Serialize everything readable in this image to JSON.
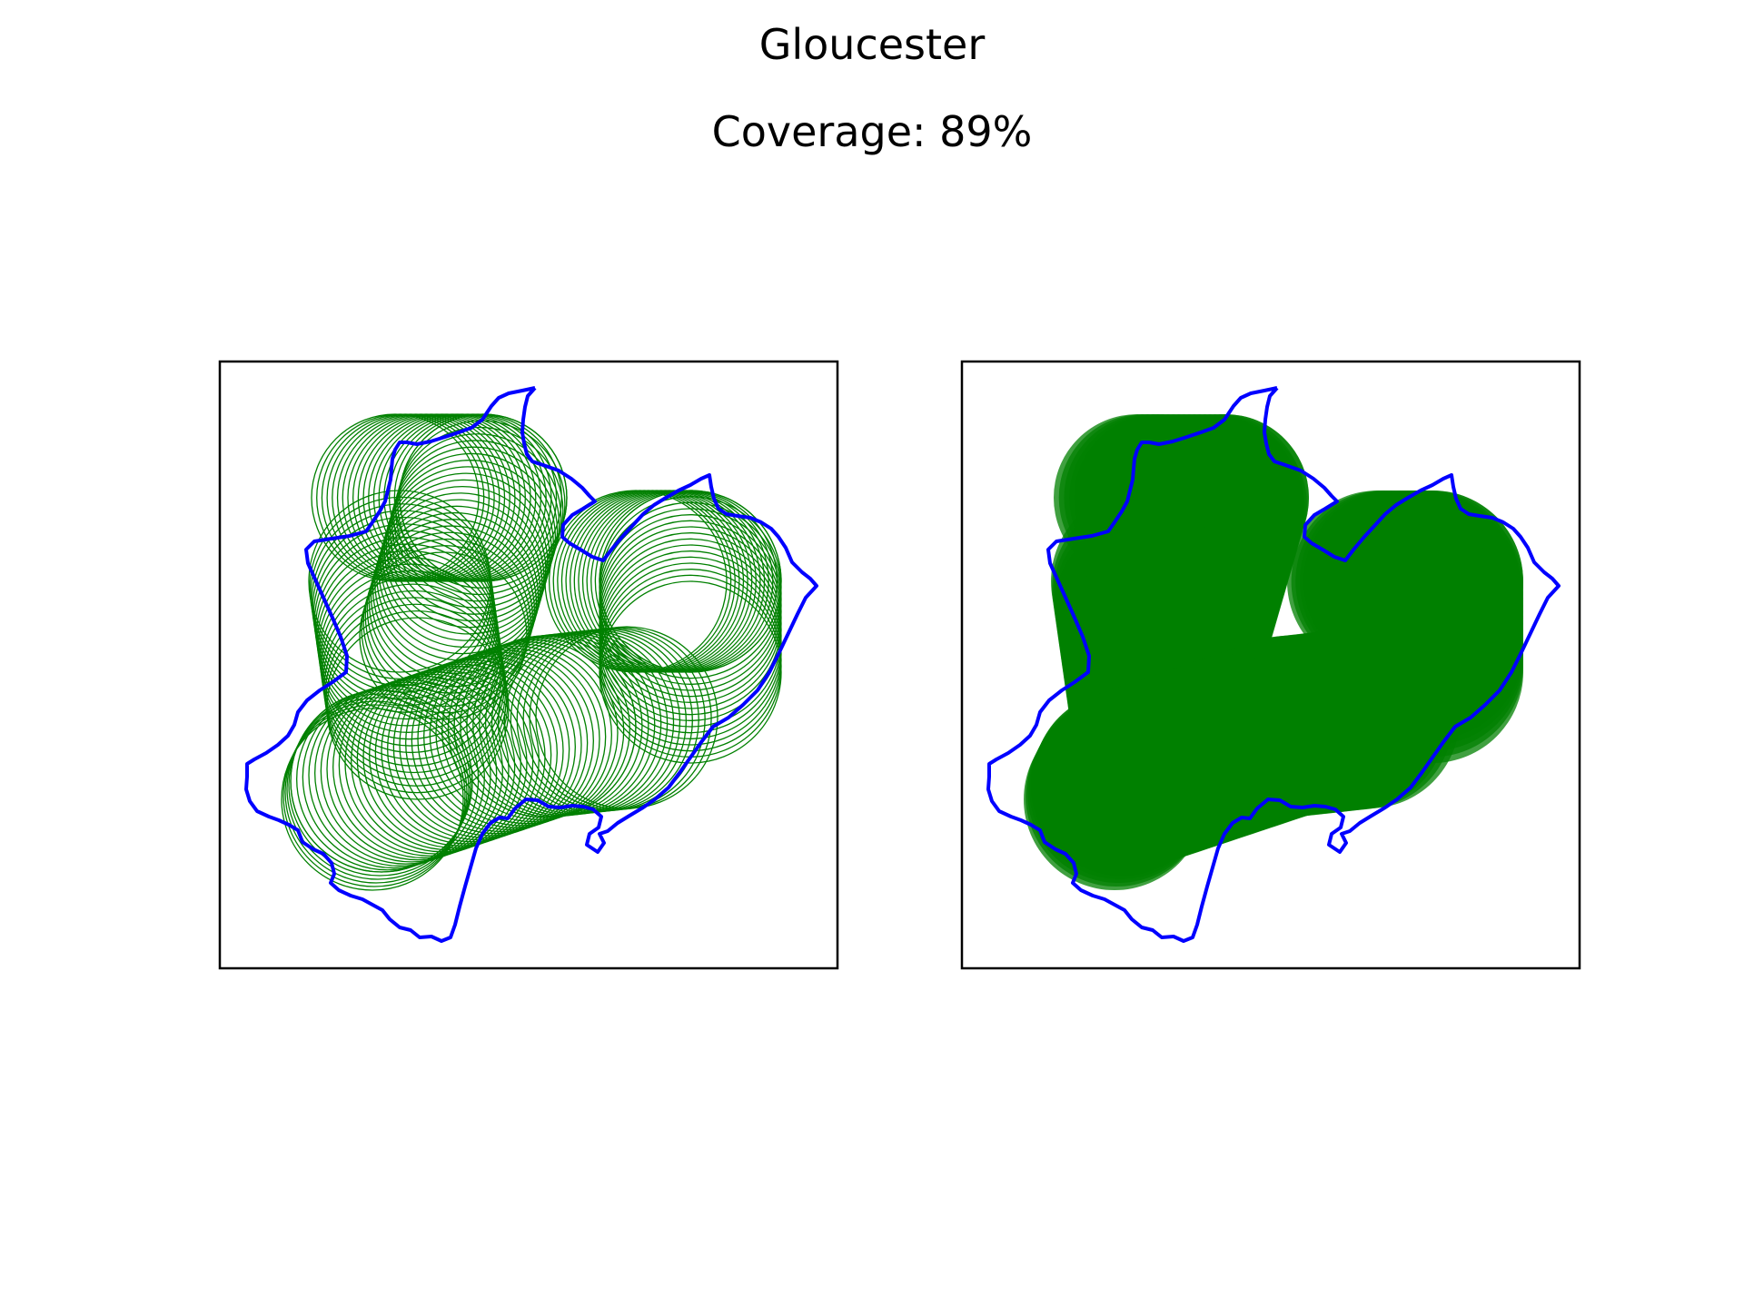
{
  "figure": {
    "title": "Gloucester",
    "subtitle": "Coverage: 89%"
  },
  "colors": {
    "boundary": "#0000ff",
    "coverage": "#008000",
    "frame": "#000000",
    "background": "#ffffff"
  },
  "panels": [
    {
      "name": "left-panel",
      "style": "outline-circles"
    },
    {
      "name": "right-panel",
      "style": "filled-circles"
    }
  ],
  "coverage_percent": 89
}
